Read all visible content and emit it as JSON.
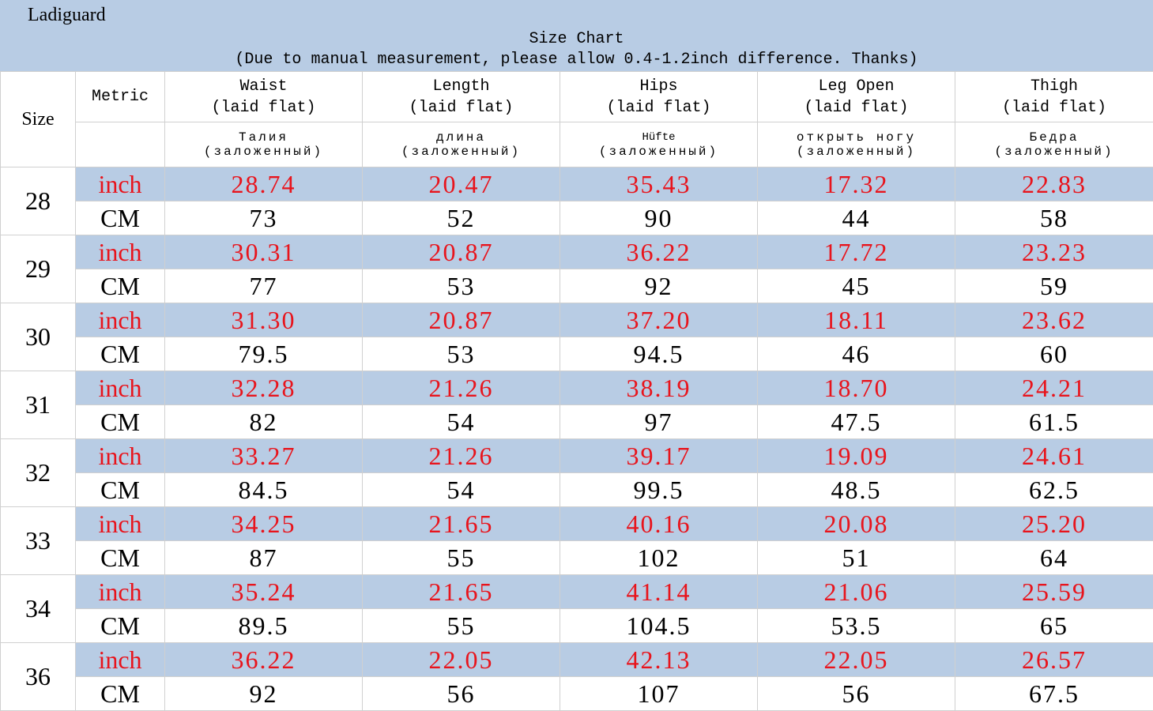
{
  "header": {
    "brand": "Ladiguard",
    "title": "Size Chart",
    "note": "(Due to manual measurement, please allow 0.4-1.2inch difference. Thanks)"
  },
  "columns": {
    "size": "Size",
    "metric": "Metric",
    "measures": [
      {
        "en": "Waist",
        "flat": "(laid flat)",
        "ru1": "Талия",
        "ru2": "(заложенный)"
      },
      {
        "en": "Length",
        "flat": "(laid flat)",
        "ru1": "длина",
        "ru2": "(заложенный)"
      },
      {
        "en": "Hips",
        "flat": "(laid flat)",
        "ru1": "Hüfte",
        "ru2": "(заложенный)"
      },
      {
        "en": "Leg Open",
        "flat": "(laid flat)",
        "ru1": "открыть ногу",
        "ru2": "(заложенный)"
      },
      {
        "en": "Thigh",
        "flat": "(laid flat)",
        "ru1": "Бедра",
        "ru2": "(заложенный)"
      }
    ]
  },
  "units": {
    "inch": "inch",
    "cm": "CM"
  },
  "rows": [
    {
      "size": "28",
      "inch": [
        "28.74",
        "20.47",
        "35.43",
        "17.32",
        "22.83"
      ],
      "cm": [
        "73",
        "52",
        "90",
        "44",
        "58"
      ]
    },
    {
      "size": "29",
      "inch": [
        "30.31",
        "20.87",
        "36.22",
        "17.72",
        "23.23"
      ],
      "cm": [
        "77",
        "53",
        "92",
        "45",
        "59"
      ]
    },
    {
      "size": "30",
      "inch": [
        "31.30",
        "20.87",
        "37.20",
        "18.11",
        "23.62"
      ],
      "cm": [
        "79.5",
        "53",
        "94.5",
        "46",
        "60"
      ]
    },
    {
      "size": "31",
      "inch": [
        "32.28",
        "21.26",
        "38.19",
        "18.70",
        "24.21"
      ],
      "cm": [
        "82",
        "54",
        "97",
        "47.5",
        "61.5"
      ]
    },
    {
      "size": "32",
      "inch": [
        "33.27",
        "21.26",
        "39.17",
        "19.09",
        "24.61"
      ],
      "cm": [
        "84.5",
        "54",
        "99.5",
        "48.5",
        "62.5"
      ]
    },
    {
      "size": "33",
      "inch": [
        "34.25",
        "21.65",
        "40.16",
        "20.08",
        "25.20"
      ],
      "cm": [
        "87",
        "55",
        "102",
        "51",
        "64"
      ]
    },
    {
      "size": "34",
      "inch": [
        "35.24",
        "21.65",
        "41.14",
        "21.06",
        "25.59"
      ],
      "cm": [
        "89.5",
        "55",
        "104.5",
        "53.5",
        "65"
      ]
    },
    {
      "size": "36",
      "inch": [
        "36.22",
        "22.05",
        "42.13",
        "22.05",
        "26.57"
      ],
      "cm": [
        "92",
        "56",
        "107",
        "56",
        "67.5"
      ]
    }
  ],
  "colors": {
    "banner": "#b8cce4",
    "inch_text": "#e8141c",
    "cm_text": "#000000"
  }
}
